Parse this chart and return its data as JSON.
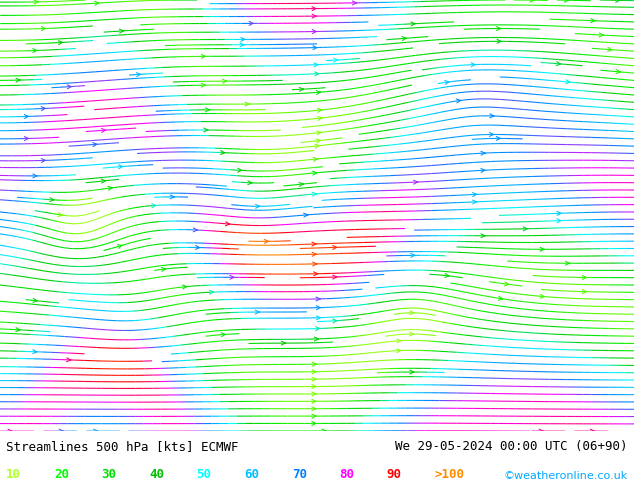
{
  "title_left": "Streamlines 500 hPa [kts] ECMWF",
  "title_right": "We 29-05-2024 00:00 UTC (06+90)",
  "copyright": "©weatheronline.co.uk",
  "legend_values": [
    "10",
    "20",
    "30",
    "40",
    "50",
    "60",
    "70",
    "80",
    "90",
    ">100"
  ],
  "legend_colors": [
    "#adff2f",
    "#00ff00",
    "#00e000",
    "#00c000",
    "#00ffff",
    "#00bfff",
    "#0080ff",
    "#ff00ff",
    "#ff0000",
    "#ff8c00"
  ],
  "background_color": "#f0f0f0",
  "map_background": "#90ee90",
  "figsize": [
    6.34,
    4.9
  ],
  "dpi": 100
}
